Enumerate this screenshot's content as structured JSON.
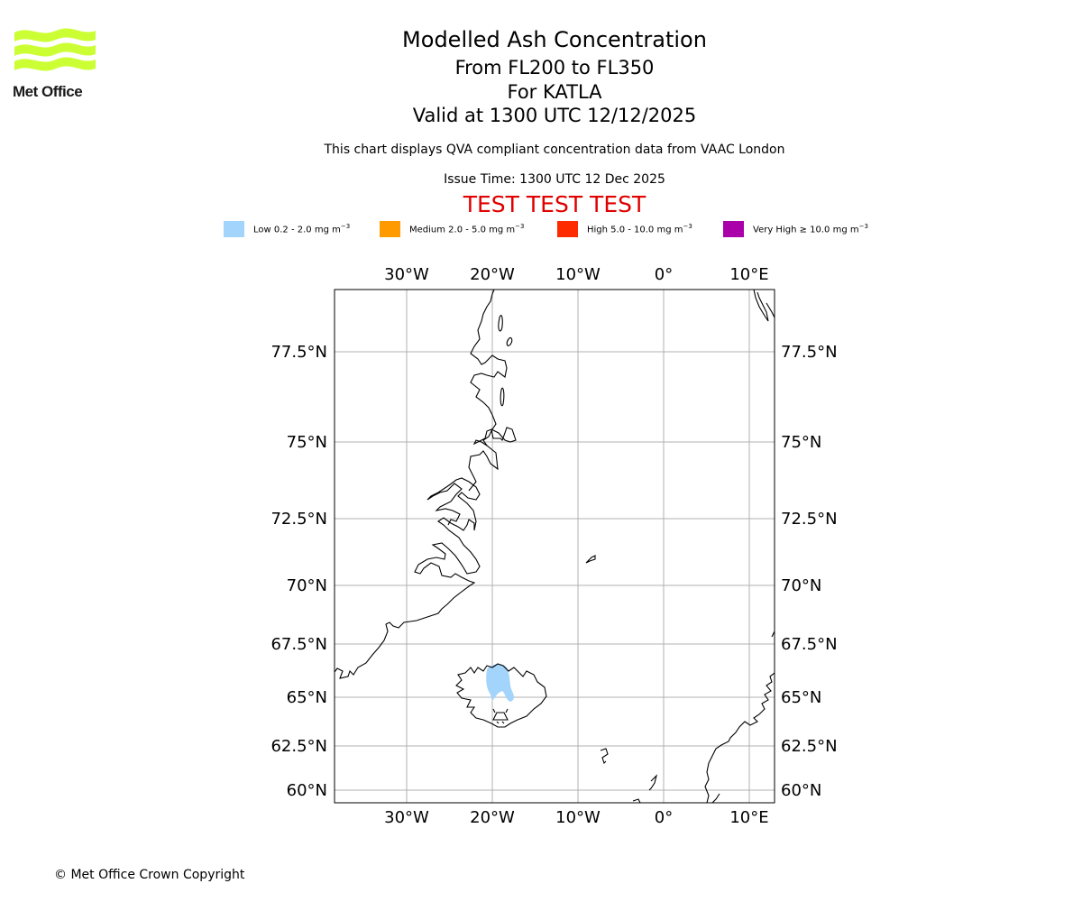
{
  "brand": {
    "logo_text": "Met Office",
    "logo_color": "#ccff33"
  },
  "header": {
    "title": "Modelled Ash Concentration",
    "levels": "From FL200 to FL350",
    "volcano": "For KATLA",
    "valid": "Valid at 1300 UTC 12/12/2025",
    "note": "This chart displays QVA compliant concentration data from VAAC London",
    "issue": "Issue Time: 1300 UTC 12 Dec 2025",
    "test_banner": "TEST TEST TEST",
    "test_color": "#e00000"
  },
  "legend": [
    {
      "label": "Low 0.2 - 2.0 mg m",
      "unit_sup": "−3",
      "color": "#a3d4fc"
    },
    {
      "label": "Medium 2.0 - 5.0 mg m",
      "unit_sup": "−3",
      "color": "#ff9a00"
    },
    {
      "label": "High 5.0 - 10.0 mg m",
      "unit_sup": "−3",
      "color": "#ff2b00"
    },
    {
      "label": "Very High  ≥  10.0 mg m",
      "unit_sup": "−3",
      "color": "#aa00aa"
    }
  ],
  "map": {
    "lon_labels": [
      "30°W",
      "20°W",
      "10°W",
      "0°",
      "10°E"
    ],
    "lat_labels": [
      "77.5°N",
      "75°N",
      "72.5°N",
      "70°N",
      "67.5°N",
      "65°N",
      "62.5°N",
      "60°N"
    ],
    "ash_level": "Low",
    "ash_color": "#a3d4fc",
    "volcano_icon": "volcano-marker-icon",
    "grid": true
  },
  "footer": {
    "copyright": "© Met Office Crown Copyright"
  }
}
